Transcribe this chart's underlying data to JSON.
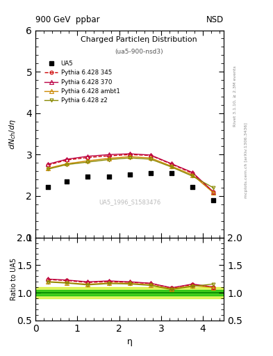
{
  "title_top_left": "900 GeV  ppbar",
  "title_top_right": "NSD",
  "plot_title": "Charged Particleη Distribution",
  "plot_subtitle": "(ua5-900-nsd3)",
  "ylabel_main": "dN$_{ch}$/dη",
  "ylabel_ratio": "Ratio to UA5",
  "xlabel": "η",
  "watermark": "UA5_1996_S1583476",
  "right_label": "Rivet 3.1.10, ≥ 2.3M events",
  "right_label2": "mcplots.cern.ch [arXiv:1306.3436]",
  "eta_ua5": [
    0.3,
    0.75,
    1.25,
    1.75,
    2.25,
    2.75,
    3.25,
    3.75,
    4.25
  ],
  "dndeta_ua5": [
    2.22,
    2.35,
    2.47,
    2.47,
    2.52,
    2.55,
    2.55,
    2.22,
    1.9
  ],
  "eta_pythia": [
    0.3,
    0.75,
    1.25,
    1.75,
    2.25,
    2.75,
    3.25,
    3.75,
    4.25
  ],
  "dndeta_345": [
    2.75,
    2.87,
    2.93,
    2.97,
    3.0,
    2.98,
    2.77,
    2.55,
    2.1
  ],
  "dndeta_370": [
    2.77,
    2.89,
    2.96,
    3.0,
    3.02,
    2.99,
    2.78,
    2.57,
    2.1
  ],
  "dndeta_ambt1": [
    2.67,
    2.78,
    2.85,
    2.91,
    2.95,
    2.92,
    2.72,
    2.51,
    2.08
  ],
  "dndeta_z2": [
    2.65,
    2.76,
    2.82,
    2.88,
    2.92,
    2.89,
    2.7,
    2.48,
    2.2
  ],
  "color_345": "#cc0000",
  "color_370": "#bb0044",
  "color_ambt1": "#cc8800",
  "color_z2": "#888800",
  "xlim": [
    0,
    4.5
  ],
  "ylim_main": [
    1.0,
    6.0
  ],
  "ylim_ratio": [
    0.5,
    2.0
  ],
  "yticks_main": [
    1,
    2,
    3,
    4,
    5,
    6
  ],
  "yticks_ratio": [
    0.5,
    1.0,
    1.5,
    2.0
  ],
  "green_band_inner": "#00bb00",
  "green_band_outer": "#ccee00",
  "green_line_color": "#008800"
}
